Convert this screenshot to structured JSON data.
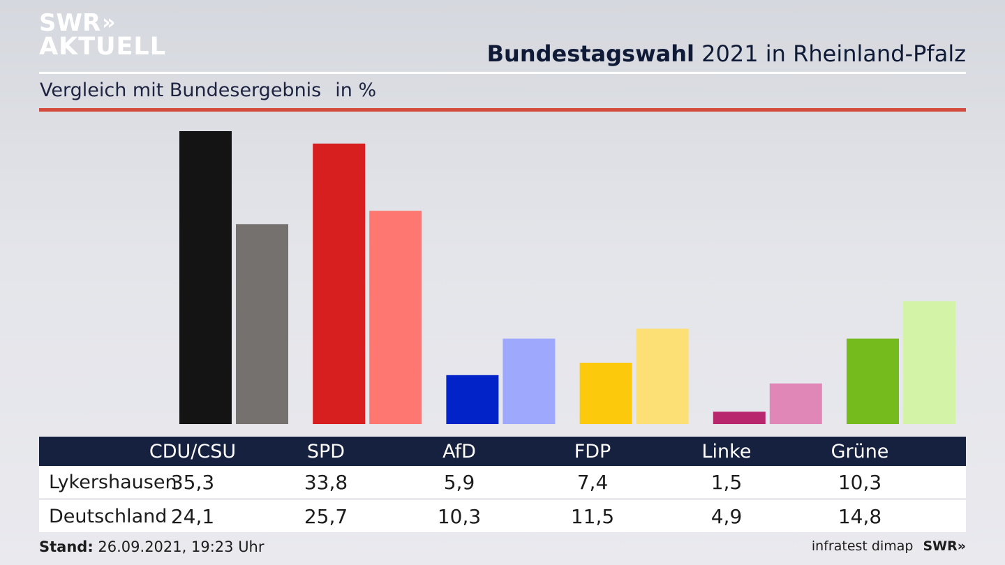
{
  "header": {
    "logo_line1": "SWR",
    "logo_chevrons": "»",
    "logo_line2": "AKTUELL",
    "title_bold": "Bundestagswahl",
    "title_rest": "2021 in Rheinland-Pfalz",
    "subtitle": "Vergleich mit Bundesergebnis",
    "unit": "in %"
  },
  "chart_data": {
    "type": "bar",
    "categories": [
      "CDU/CSU",
      "SPD",
      "AfD",
      "FDP",
      "Linke",
      "Grüne"
    ],
    "series": [
      {
        "name": "Lykershausen",
        "values": [
          35.3,
          33.8,
          5.9,
          7.4,
          1.5,
          10.3
        ]
      },
      {
        "name": "Deutschland",
        "values": [
          24.1,
          25.7,
          10.3,
          11.5,
          4.9,
          14.8
        ]
      }
    ],
    "colors": {
      "Lykershausen": [
        "#141414",
        "#d71f20",
        "#0223c7",
        "#fdc90d",
        "#b8266e",
        "#76bb1e"
      ],
      "Deutschland": [
        "#74716f",
        "#fe7771",
        "#9ea9fd",
        "#fde075",
        "#e087b7",
        "#d3f3a6"
      ]
    },
    "ylim": [
      0,
      35.3
    ],
    "grid": false
  },
  "table": {
    "headers": [
      "CDU/CSU",
      "SPD",
      "AfD",
      "FDP",
      "Linke",
      "Grüne"
    ],
    "rows": [
      {
        "label": "Lykershausen",
        "values": [
          "35,3",
          "33,8",
          "5,9",
          "7,4",
          "1,5",
          "10,3"
        ]
      },
      {
        "label": "Deutschland",
        "values": [
          "24,1",
          "25,7",
          "10,3",
          "11,5",
          "4,9",
          "14,8"
        ]
      }
    ]
  },
  "footer": {
    "stand_label": "Stand:",
    "stand_value": "26.09.2021, 19:23 Uhr",
    "source": "infratest dimap",
    "brand": "SWR»"
  }
}
